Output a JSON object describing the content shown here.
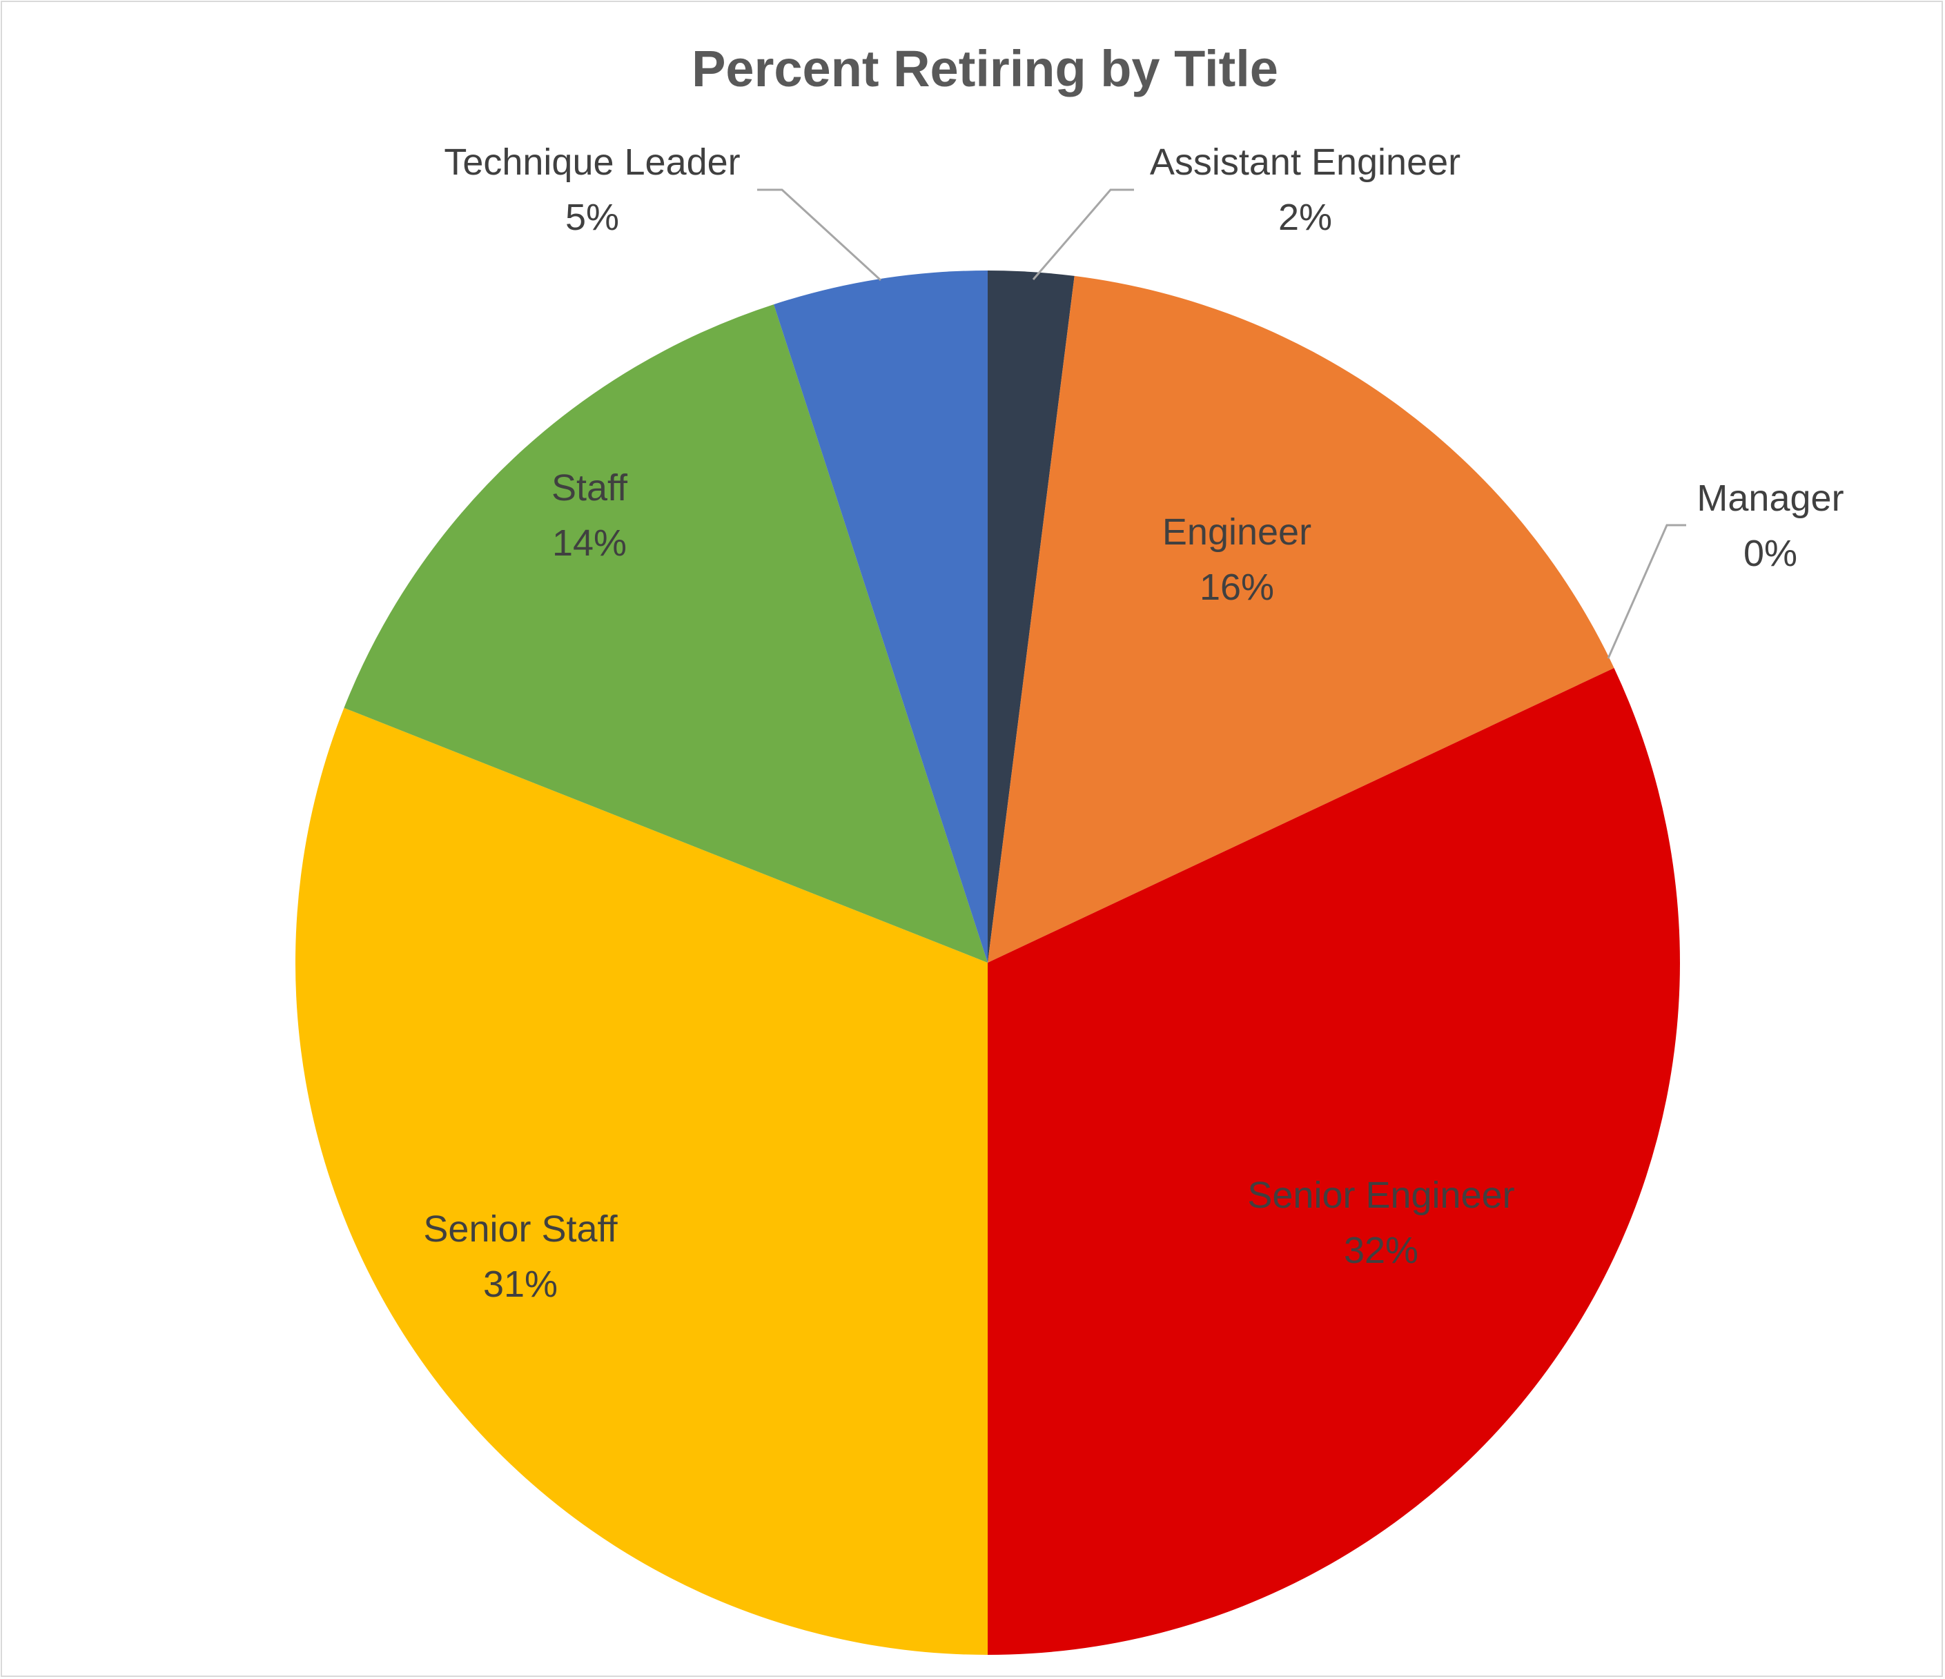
{
  "chart_data": {
    "type": "pie",
    "title": "Percent Retiring by Title",
    "start_angle_deg": 0,
    "direction": "clockwise",
    "slices": [
      {
        "name": "Assistant Engineer",
        "value": 2,
        "label": "2%",
        "color": "#333F50",
        "label_position": "outside"
      },
      {
        "name": "Engineer",
        "value": 16,
        "label": "16%",
        "color": "#ED7D31",
        "label_position": "inside"
      },
      {
        "name": "Manager",
        "value": 0,
        "label": "0%",
        "color": "#A5A5A5",
        "label_position": "outside"
      },
      {
        "name": "Senior Engineer",
        "value": 32,
        "label": "32%",
        "color": "#DC0000",
        "label_position": "inside"
      },
      {
        "name": "Senior Staff",
        "value": 31,
        "label": "31%",
        "color": "#FFC000",
        "label_position": "inside"
      },
      {
        "name": "Staff",
        "value": 14,
        "label": "14%",
        "color": "#70AD47",
        "label_position": "inside"
      },
      {
        "name": "Technique Leader",
        "value": 5,
        "label": "5%",
        "color": "#4472C4",
        "label_position": "outside"
      }
    ]
  }
}
